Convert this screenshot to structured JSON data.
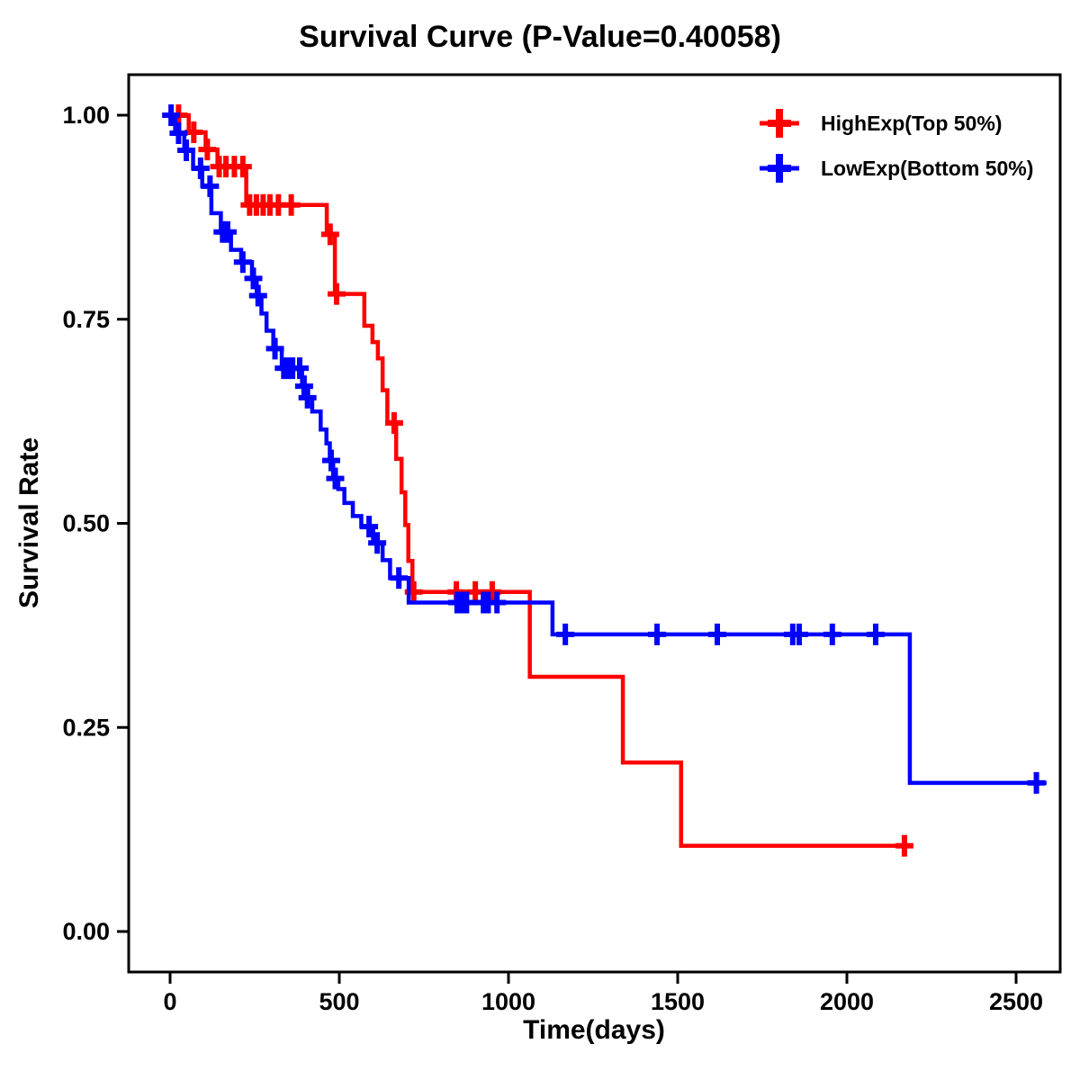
{
  "title": "Survival Curve (P-Value=0.40058)",
  "p_value": "0.40058",
  "colors": {
    "high_exp": "#ff0000",
    "low_exp": "#0000ff",
    "axis": "#000000",
    "background": "#ffffff"
  },
  "legend": [
    {
      "label": "HighExp(Top 50%)",
      "color": "#ff0000",
      "marker": "plus-on-line"
    },
    {
      "label": "LowExp(Bottom 50%)",
      "color": "#0000ff",
      "marker": "plus-on-line"
    }
  ],
  "chart_data": {
    "type": "line",
    "subtype": "kaplan-meier-step",
    "title": "Survival Curve (P-Value=0.40058)",
    "xlabel": "Time(days)",
    "ylabel": "Survival Rate",
    "xlim": [
      -120,
      2630
    ],
    "ylim": [
      -0.05,
      1.05
    ],
    "xticks": [
      0,
      500,
      1000,
      1500,
      2000,
      2500
    ],
    "yticks": [
      0,
      0.25,
      0.5,
      0.75,
      1.0
    ],
    "ytick_labels": [
      "0.00",
      "0.25",
      "0.50",
      "0.75",
      "1.00"
    ],
    "grid": false,
    "legend_position": "top-right-inside",
    "series": [
      {
        "name": "HighExp(Top 50%)",
        "color": "#ff0000",
        "end_time": 2180,
        "steps": [
          [
            0,
            1.0
          ],
          [
            55,
            0.979
          ],
          [
            105,
            0.958
          ],
          [
            140,
            0.937
          ],
          [
            225,
            0.89
          ],
          [
            463,
            0.854
          ],
          [
            487,
            0.781
          ],
          [
            574,
            0.742
          ],
          [
            598,
            0.722
          ],
          [
            614,
            0.702
          ],
          [
            628,
            0.663
          ],
          [
            642,
            0.623
          ],
          [
            668,
            0.579
          ],
          [
            684,
            0.538
          ],
          [
            695,
            0.498
          ],
          [
            704,
            0.454
          ],
          [
            716,
            0.416
          ],
          [
            1063,
            0.312
          ],
          [
            1338,
            0.207
          ],
          [
            1510,
            0.105
          ]
        ],
        "censors": [
          [
            25,
            1.0
          ],
          [
            70,
            0.979
          ],
          [
            110,
            0.958
          ],
          [
            145,
            0.937
          ],
          [
            165,
            0.937
          ],
          [
            190,
            0.937
          ],
          [
            215,
            0.937
          ],
          [
            235,
            0.89
          ],
          [
            255,
            0.89
          ],
          [
            275,
            0.89
          ],
          [
            295,
            0.89
          ],
          [
            320,
            0.89
          ],
          [
            358,
            0.89
          ],
          [
            473,
            0.854
          ],
          [
            492,
            0.781
          ],
          [
            662,
            0.623
          ],
          [
            720,
            0.416
          ],
          [
            846,
            0.416
          ],
          [
            902,
            0.416
          ],
          [
            952,
            0.416
          ],
          [
            2170,
            0.105
          ]
        ]
      },
      {
        "name": "LowExp(Bottom 50%)",
        "color": "#0000ff",
        "end_time": 2590,
        "steps": [
          [
            0,
            1.0
          ],
          [
            15,
            0.978
          ],
          [
            42,
            0.957
          ],
          [
            68,
            0.935
          ],
          [
            95,
            0.913
          ],
          [
            122,
            0.88
          ],
          [
            150,
            0.857
          ],
          [
            180,
            0.835
          ],
          [
            210,
            0.82
          ],
          [
            242,
            0.8
          ],
          [
            256,
            0.779
          ],
          [
            270,
            0.757
          ],
          [
            285,
            0.736
          ],
          [
            305,
            0.714
          ],
          [
            330,
            0.69
          ],
          [
            390,
            0.668
          ],
          [
            403,
            0.654
          ],
          [
            420,
            0.637
          ],
          [
            445,
            0.615
          ],
          [
            462,
            0.598
          ],
          [
            472,
            0.577
          ],
          [
            482,
            0.555
          ],
          [
            497,
            0.542
          ],
          [
            515,
            0.525
          ],
          [
            540,
            0.509
          ],
          [
            565,
            0.496
          ],
          [
            600,
            0.476
          ],
          [
            628,
            0.455
          ],
          [
            650,
            0.433
          ],
          [
            705,
            0.403
          ],
          [
            1130,
            0.364
          ],
          [
            2186,
            0.182
          ]
        ],
        "censors": [
          [
            3,
            1.0
          ],
          [
            25,
            0.978
          ],
          [
            48,
            0.957
          ],
          [
            90,
            0.935
          ],
          [
            118,
            0.913
          ],
          [
            155,
            0.857
          ],
          [
            170,
            0.857
          ],
          [
            215,
            0.82
          ],
          [
            246,
            0.8
          ],
          [
            260,
            0.779
          ],
          [
            310,
            0.714
          ],
          [
            336,
            0.69
          ],
          [
            350,
            0.69
          ],
          [
            362,
            0.69
          ],
          [
            383,
            0.69
          ],
          [
            396,
            0.668
          ],
          [
            406,
            0.654
          ],
          [
            476,
            0.577
          ],
          [
            488,
            0.555
          ],
          [
            588,
            0.496
          ],
          [
            612,
            0.476
          ],
          [
            676,
            0.433
          ],
          [
            848,
            0.403
          ],
          [
            862,
            0.403
          ],
          [
            876,
            0.403
          ],
          [
            926,
            0.403
          ],
          [
            940,
            0.403
          ],
          [
            966,
            0.403
          ],
          [
            1168,
            0.364
          ],
          [
            1439,
            0.364
          ],
          [
            1617,
            0.364
          ],
          [
            1840,
            0.364
          ],
          [
            1859,
            0.364
          ],
          [
            1957,
            0.364
          ],
          [
            2085,
            0.364
          ],
          [
            2560,
            0.182
          ]
        ]
      }
    ]
  }
}
